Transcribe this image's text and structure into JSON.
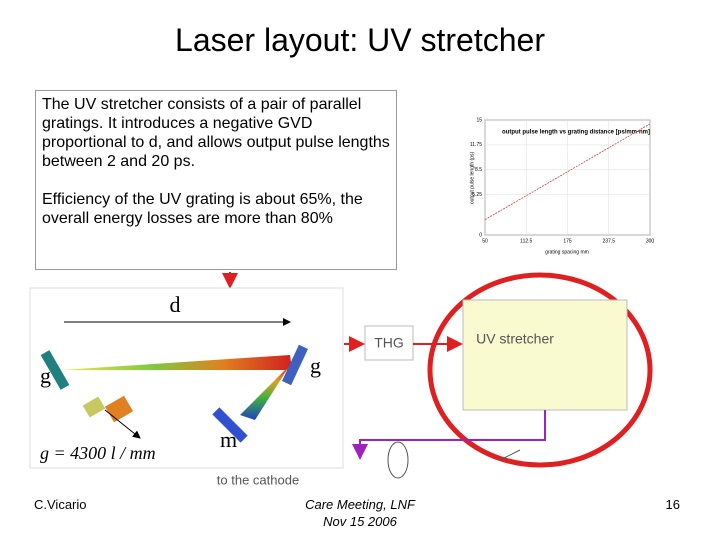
{
  "title": "Laser layout: UV stretcher",
  "text_box": {
    "paragraphs": [
      "The UV stretcher consists of a pair of parallel gratings. It introduces a negative GVD proportional to d, and allows output pulse lengths between 2 and 20 ps.",
      "Efficiency of the UV grating is about 65%, the overall energy losses are more than 80%"
    ]
  },
  "inset_chart": {
    "title": "output pulse length vs grating distance [ps/mm-nm]",
    "x_label": "grating spacing mm",
    "y_label": "output pulse length (ps)",
    "x": [
      50,
      300
    ],
    "values": [
      2,
      14.5
    ],
    "color": "#d04040",
    "xlim": [
      50,
      300
    ],
    "xticks": [
      50,
      112.5,
      175,
      237.5,
      300
    ],
    "ylim": [
      0,
      15
    ],
    "yticks": [
      0,
      5.25,
      8.5,
      11.75,
      15
    ]
  },
  "diagram": {
    "d": "d",
    "g_left": "g",
    "g_right": "g",
    "m": "m",
    "groove_density": "g = 4300 l / mm",
    "thg": "THG",
    "stretcher": "UV stretcher",
    "cathode": "to the cathode"
  },
  "footer": {
    "author": "C.Vicario",
    "meeting": "Care Meeting, LNF",
    "date": "Nov 15 2006",
    "page": "16"
  }
}
